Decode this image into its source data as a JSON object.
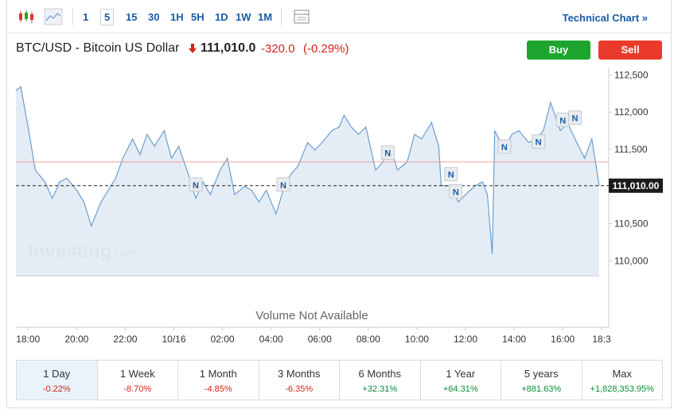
{
  "toolbar": {
    "intervals": [
      "1",
      "5",
      "15",
      "30",
      "1H",
      "5H",
      "1D",
      "1W",
      "1M"
    ],
    "selected": "5",
    "link": "Technical Chart »"
  },
  "header": {
    "instrument": "BTC/USD - Bitcoin US Dollar",
    "price": "111,010.0",
    "change": "-320.0",
    "change_pct": "(-0.29%)",
    "buy": "Buy",
    "sell": "Sell"
  },
  "chart": {
    "type": "line",
    "watermark": "Investing",
    "watermark_suffix": ".com",
    "volume_note": "Volume Not Available",
    "color": "#6a9fcf",
    "fill": "#dfe9f3",
    "x": [
      -0.5,
      -0.3,
      0,
      0.3,
      0.7,
      1,
      1.3,
      1.6,
      2,
      2.3,
      2.6,
      3,
      3.3,
      3.6,
      3.9,
      4.3,
      4.6,
      4.9,
      5.2,
      5.6,
      5.9,
      6.2,
      6.6,
      6.9,
      7.2,
      7.5,
      7.9,
      8.2,
      8.5,
      8.9,
      9.2,
      9.5,
      9.8,
      10.2,
      10.5,
      10.8,
      11.1,
      11.5,
      11.8,
      12.1,
      12.5,
      12.8,
      13,
      13.3,
      13.6,
      13.9,
      14.3,
      14.6,
      14.9,
      15.2,
      15.6,
      15.9,
      16.2,
      16.6,
      16.9,
      17,
      17.4,
      17.7,
      18,
      18.4,
      18.7,
      18.9,
      19.1,
      19.2,
      19.6,
      19.9,
      20.2,
      20.6,
      20.9,
      21.2,
      21.5,
      21.9,
      22.2,
      22.5,
      22.9,
      23.2,
      23.4,
      23.5
    ],
    "values": [
      112290,
      112340,
      111800,
      111220,
      111060,
      110840,
      111060,
      111110,
      110950,
      110790,
      110470,
      110790,
      110950,
      111110,
      111380,
      111640,
      111430,
      111700,
      111540,
      111750,
      111380,
      111540,
      111160,
      110840,
      111060,
      110890,
      111220,
      111380,
      110890,
      111000,
      110950,
      110790,
      110950,
      110630,
      110950,
      111160,
      111270,
      111590,
      111490,
      111590,
      111750,
      111800,
      111960,
      111800,
      111700,
      111800,
      111220,
      111330,
      111540,
      111220,
      111330,
      111700,
      111640,
      111860,
      111540,
      111010,
      111010,
      110790,
      110890,
      111010,
      111060,
      110890,
      110090,
      111750,
      111490,
      111700,
      111750,
      111590,
      111640,
      111750,
      112130,
      111750,
      111860,
      111640,
      111380,
      111640,
      111220,
      111010
    ],
    "xlim": [
      -0.5,
      23.5
    ],
    "ylim": [
      109800,
      112600
    ],
    "yticks": [
      {
        "value": 110000,
        "label": "110,000"
      },
      {
        "value": 110500,
        "label": "110,500"
      },
      {
        "value": 111000,
        "label": "111,000"
      },
      {
        "value": 111500,
        "label": "111,500"
      },
      {
        "value": 112000,
        "label": "112,000"
      },
      {
        "value": 112500,
        "label": "112,500"
      }
    ],
    "xticks": [
      {
        "value": 0,
        "label": "18:00"
      },
      {
        "value": 2,
        "label": "20:00"
      },
      {
        "value": 4,
        "label": "22:00"
      },
      {
        "value": 6,
        "label": "10/16"
      },
      {
        "value": 8,
        "label": "02:00"
      },
      {
        "value": 10,
        "label": "04:00"
      },
      {
        "value": 12,
        "label": "06:00"
      },
      {
        "value": 14,
        "label": "08:00"
      },
      {
        "value": 16,
        "label": "10:00"
      },
      {
        "value": 18,
        "label": "12:00"
      },
      {
        "value": 20,
        "label": "14:00"
      },
      {
        "value": 22,
        "label": "16:00"
      },
      {
        "value": 23.6,
        "label": "18:3"
      }
    ],
    "previous_close": 111330,
    "last_price": {
      "value": 111010,
      "label": "111,010.00"
    },
    "news": [
      {
        "x": 6.9,
        "y": 111020,
        "label": "N"
      },
      {
        "x": 10.5,
        "y": 111020,
        "label": "N"
      },
      {
        "x": 14.8,
        "y": 111450,
        "label": "N"
      },
      {
        "x": 17.4,
        "y": 111160,
        "label": "N"
      },
      {
        "x": 17.6,
        "y": 110930,
        "label": "N"
      },
      {
        "x": 19.6,
        "y": 111530,
        "label": "N"
      },
      {
        "x": 21.0,
        "y": 111600,
        "label": "N"
      },
      {
        "x": 22.0,
        "y": 111890,
        "label": "N"
      },
      {
        "x": 22.5,
        "y": 111920,
        "label": "N"
      }
    ]
  },
  "periods": [
    {
      "name": "1 Day",
      "change": "-0.22%",
      "direction": "down"
    },
    {
      "name": "1 Week",
      "change": "-8.70%",
      "direction": "down"
    },
    {
      "name": "1 Month",
      "change": "-4.85%",
      "direction": "down"
    },
    {
      "name": "3 Months",
      "change": "-6.35%",
      "direction": "down"
    },
    {
      "name": "6 Months",
      "change": "+32.31%",
      "direction": "up"
    },
    {
      "name": "1 Year",
      "change": "+64.31%",
      "direction": "up"
    },
    {
      "name": "5 years",
      "change": "+881.63%",
      "direction": "up"
    },
    {
      "name": "Max",
      "change": "+1,828,353.95%",
      "direction": "up"
    }
  ]
}
